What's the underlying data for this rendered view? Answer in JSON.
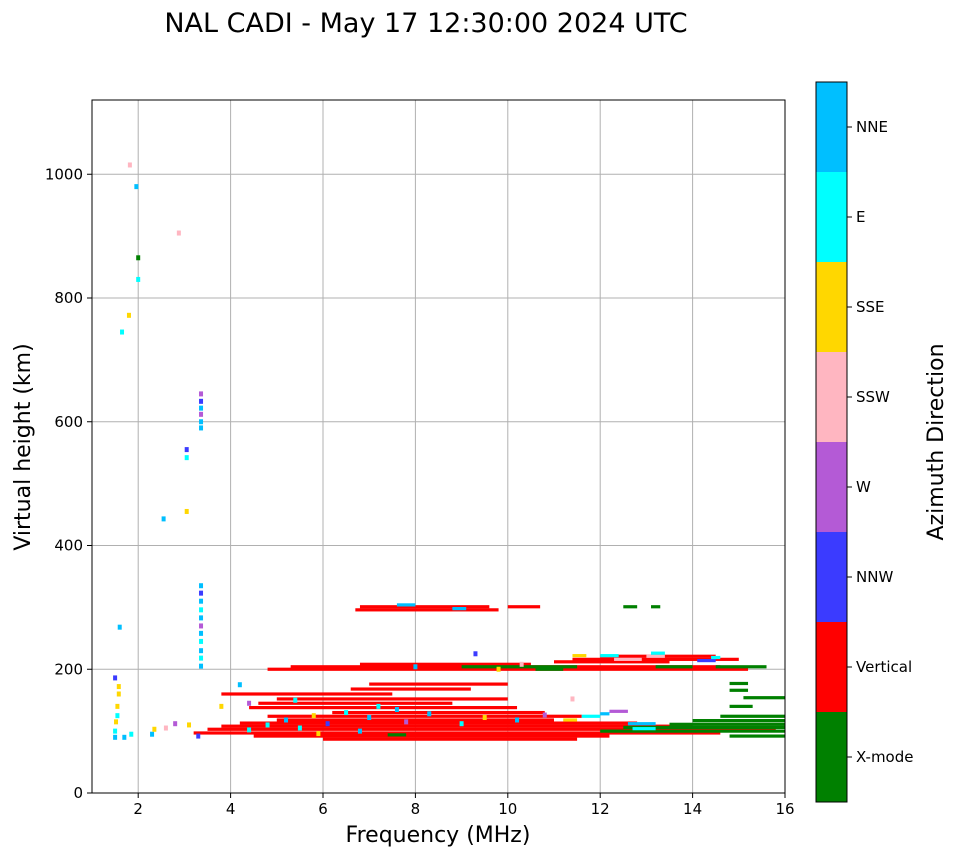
{
  "chart_data": {
    "type": "scatter",
    "title": "NAL CADI - May 17 12:30:00 2024 UTC",
    "xlabel": "Frequency (MHz)",
    "ylabel": "Virtual height (km)",
    "xlim": [
      1,
      16
    ],
    "ylim": [
      0,
      1120
    ],
    "xticks": [
      2,
      4,
      6,
      8,
      10,
      12,
      14,
      16
    ],
    "yticks": [
      0,
      200,
      400,
      600,
      800,
      1000
    ],
    "grid": true,
    "colorbar": {
      "label": "Azimuth Direction",
      "categories": [
        {
          "name": "X-mode",
          "color": "#008000"
        },
        {
          "name": "Vertical",
          "color": "#ff0000"
        },
        {
          "name": "NNW",
          "color": "#3b3bff"
        },
        {
          "name": "W",
          "color": "#b45ad6"
        },
        {
          "name": "SSW",
          "color": "#ffb6c1"
        },
        {
          "name": "SSE",
          "color": "#ffd700"
        },
        {
          "name": "E",
          "color": "#00ffff"
        },
        {
          "name": "NNE",
          "color": "#00bfff"
        }
      ]
    },
    "segments": [
      {
        "f1": 3.2,
        "f2": 14.6,
        "h": 97,
        "c": "Vertical"
      },
      {
        "f1": 3.5,
        "f2": 15.8,
        "h": 103,
        "c": "Vertical"
      },
      {
        "f1": 3.8,
        "f2": 14.0,
        "h": 108,
        "c": "Vertical"
      },
      {
        "f1": 4.5,
        "f2": 12.2,
        "h": 92,
        "c": "Vertical"
      },
      {
        "f1": 6.0,
        "f2": 11.5,
        "h": 87,
        "c": "Vertical"
      },
      {
        "f1": 4.2,
        "f2": 12.8,
        "h": 113,
        "c": "Vertical"
      },
      {
        "f1": 5.0,
        "f2": 11.0,
        "h": 118,
        "c": "Vertical"
      },
      {
        "f1": 4.8,
        "f2": 11.6,
        "h": 124,
        "c": "Vertical"
      },
      {
        "f1": 6.2,
        "f2": 10.8,
        "h": 130,
        "c": "Vertical"
      },
      {
        "f1": 4.4,
        "f2": 10.2,
        "h": 138,
        "c": "Vertical"
      },
      {
        "f1": 4.6,
        "f2": 8.8,
        "h": 145,
        "c": "Vertical"
      },
      {
        "f1": 5.0,
        "f2": 10.0,
        "h": 152,
        "c": "Vertical"
      },
      {
        "f1": 3.8,
        "f2": 7.5,
        "h": 160,
        "c": "Vertical"
      },
      {
        "f1": 6.6,
        "f2": 9.2,
        "h": 168,
        "c": "Vertical"
      },
      {
        "f1": 7.0,
        "f2": 10.0,
        "h": 176,
        "c": "Vertical"
      },
      {
        "f1": 4.8,
        "f2": 15.2,
        "h": 200,
        "c": "Vertical"
      },
      {
        "f1": 5.3,
        "f2": 14.6,
        "h": 204,
        "c": "Vertical"
      },
      {
        "f1": 6.8,
        "f2": 10.5,
        "h": 208,
        "c": "Vertical"
      },
      {
        "f1": 11.0,
        "f2": 13.5,
        "h": 212,
        "c": "Vertical"
      },
      {
        "f1": 11.4,
        "f2": 15.0,
        "h": 216,
        "c": "Vertical"
      },
      {
        "f1": 12.0,
        "f2": 14.5,
        "h": 221,
        "c": "Vertical"
      },
      {
        "f1": 6.7,
        "f2": 9.8,
        "h": 296,
        "c": "Vertical"
      },
      {
        "f1": 6.8,
        "f2": 9.6,
        "h": 301,
        "c": "Vertical"
      },
      {
        "f1": 10.0,
        "f2": 10.7,
        "h": 301,
        "c": "Vertical"
      },
      {
        "f1": 12.5,
        "f2": 12.8,
        "h": 301,
        "c": "X-mode"
      },
      {
        "f1": 13.1,
        "f2": 13.3,
        "h": 301,
        "c": "X-mode"
      },
      {
        "f1": 12.0,
        "f2": 16.0,
        "h": 100,
        "c": "X-mode"
      },
      {
        "f1": 12.5,
        "f2": 16.0,
        "h": 106,
        "c": "X-mode"
      },
      {
        "f1": 13.5,
        "f2": 16.0,
        "h": 111,
        "c": "X-mode"
      },
      {
        "f1": 14.8,
        "f2": 16.0,
        "h": 92,
        "c": "X-mode"
      },
      {
        "f1": 14.0,
        "f2": 16.0,
        "h": 117,
        "c": "X-mode"
      },
      {
        "f1": 14.6,
        "f2": 16.0,
        "h": 124,
        "c": "X-mode"
      },
      {
        "f1": 14.8,
        "f2": 15.3,
        "h": 140,
        "c": "X-mode"
      },
      {
        "f1": 15.1,
        "f2": 16.0,
        "h": 154,
        "c": "X-mode"
      },
      {
        "f1": 14.8,
        "f2": 15.2,
        "h": 166,
        "c": "X-mode"
      },
      {
        "f1": 14.8,
        "f2": 15.2,
        "h": 177,
        "c": "X-mode"
      },
      {
        "f1": 14.5,
        "f2": 15.6,
        "h": 204,
        "c": "X-mode"
      },
      {
        "f1": 13.2,
        "f2": 14.0,
        "h": 204,
        "c": "X-mode"
      },
      {
        "f1": 9.0,
        "f2": 11.5,
        "h": 204,
        "c": "X-mode"
      },
      {
        "f1": 7.4,
        "f2": 7.8,
        "h": 94,
        "c": "X-mode"
      },
      {
        "f1": 10.6,
        "f2": 11.2,
        "h": 200,
        "c": "X-mode"
      },
      {
        "f1": 7.6,
        "f2": 8.0,
        "h": 304,
        "c": "NNE"
      },
      {
        "f1": 8.8,
        "f2": 9.1,
        "h": 298,
        "c": "NNE"
      },
      {
        "f1": 12.6,
        "f2": 13.2,
        "h": 112,
        "c": "NNE"
      },
      {
        "f1": 12.7,
        "f2": 13.2,
        "h": 104,
        "c": "E"
      },
      {
        "f1": 11.6,
        "f2": 12.0,
        "h": 124,
        "c": "E"
      },
      {
        "f1": 12.3,
        "f2": 12.9,
        "h": 216,
        "c": "SSW"
      },
      {
        "f1": 13.0,
        "f2": 13.4,
        "h": 221,
        "c": "SSW"
      },
      {
        "f1": 12.0,
        "f2": 12.4,
        "h": 222,
        "c": "E"
      },
      {
        "f1": 14.1,
        "f2": 14.5,
        "h": 214,
        "c": "NNW"
      },
      {
        "f1": 12.2,
        "f2": 12.6,
        "h": 132,
        "c": "W"
      },
      {
        "f1": 13.1,
        "f2": 13.4,
        "h": 226,
        "c": "E"
      },
      {
        "f1": 11.4,
        "f2": 11.7,
        "h": 222,
        "c": "SSE"
      },
      {
        "f1": 14.4,
        "f2": 14.6,
        "h": 219,
        "c": "E"
      },
      {
        "f1": 12.0,
        "f2": 12.2,
        "h": 128,
        "c": "NNE"
      },
      {
        "f1": 11.2,
        "f2": 11.5,
        "h": 118,
        "c": "SSE"
      }
    ],
    "points": [
      {
        "f": 3.36,
        "h": 205,
        "c": "NNE"
      },
      {
        "f": 3.36,
        "h": 218,
        "c": "E"
      },
      {
        "f": 3.36,
        "h": 230,
        "c": "NNE"
      },
      {
        "f": 3.36,
        "h": 245,
        "c": "E"
      },
      {
        "f": 3.36,
        "h": 258,
        "c": "NNE"
      },
      {
        "f": 3.36,
        "h": 270,
        "c": "W"
      },
      {
        "f": 3.36,
        "h": 283,
        "c": "NNE"
      },
      {
        "f": 3.36,
        "h": 296,
        "c": "E"
      },
      {
        "f": 3.36,
        "h": 310,
        "c": "NNE"
      },
      {
        "f": 3.36,
        "h": 323,
        "c": "NNW"
      },
      {
        "f": 3.36,
        "h": 335,
        "c": "NNE"
      },
      {
        "f": 3.36,
        "h": 590,
        "c": "NNE"
      },
      {
        "f": 3.36,
        "h": 600,
        "c": "NNE"
      },
      {
        "f": 3.36,
        "h": 612,
        "c": "W"
      },
      {
        "f": 3.36,
        "h": 622,
        "c": "NNE"
      },
      {
        "f": 3.36,
        "h": 633,
        "c": "NNW"
      },
      {
        "f": 3.36,
        "h": 645,
        "c": "W"
      },
      {
        "f": 1.5,
        "h": 90,
        "c": "NNE"
      },
      {
        "f": 1.5,
        "h": 100,
        "c": "E"
      },
      {
        "f": 1.52,
        "h": 115,
        "c": "SSE"
      },
      {
        "f": 1.55,
        "h": 125,
        "c": "E"
      },
      {
        "f": 1.55,
        "h": 140,
        "c": "SSE"
      },
      {
        "f": 1.58,
        "h": 160,
        "c": "SSE"
      },
      {
        "f": 1.58,
        "h": 172,
        "c": "SSE"
      },
      {
        "f": 1.5,
        "h": 186,
        "c": "NNW"
      },
      {
        "f": 1.6,
        "h": 268,
        "c": "NNE"
      },
      {
        "f": 1.7,
        "h": 90,
        "c": "NNE"
      },
      {
        "f": 1.85,
        "h": 95,
        "c": "E"
      },
      {
        "f": 2.3,
        "h": 95,
        "c": "NNE"
      },
      {
        "f": 2.35,
        "h": 103,
        "c": "SSE"
      },
      {
        "f": 2.6,
        "h": 105,
        "c": "SSW"
      },
      {
        "f": 2.8,
        "h": 112,
        "c": "W"
      },
      {
        "f": 3.1,
        "h": 110,
        "c": "SSE"
      },
      {
        "f": 3.3,
        "h": 92,
        "c": "NNW"
      },
      {
        "f": 1.96,
        "h": 980,
        "c": "NNE"
      },
      {
        "f": 2.0,
        "h": 865,
        "c": "X-mode"
      },
      {
        "f": 2.0,
        "h": 830,
        "c": "E"
      },
      {
        "f": 1.8,
        "h": 772,
        "c": "SSE"
      },
      {
        "f": 1.65,
        "h": 745,
        "c": "E"
      },
      {
        "f": 2.88,
        "h": 905,
        "c": "SSW"
      },
      {
        "f": 1.82,
        "h": 1015,
        "c": "SSW"
      },
      {
        "f": 3.05,
        "h": 555,
        "c": "NNW"
      },
      {
        "f": 3.05,
        "h": 542,
        "c": "E"
      },
      {
        "f": 3.05,
        "h": 455,
        "c": "SSE"
      },
      {
        "f": 2.55,
        "h": 443,
        "c": "NNE"
      },
      {
        "f": 4.8,
        "h": 110,
        "c": "E"
      },
      {
        "f": 5.2,
        "h": 118,
        "c": "NNE"
      },
      {
        "f": 5.5,
        "h": 105,
        "c": "E"
      },
      {
        "f": 5.8,
        "h": 125,
        "c": "SSE"
      },
      {
        "f": 6.1,
        "h": 112,
        "c": "NNW"
      },
      {
        "f": 6.5,
        "h": 130,
        "c": "E"
      },
      {
        "f": 7.0,
        "h": 122,
        "c": "NNE"
      },
      {
        "f": 7.2,
        "h": 140,
        "c": "E"
      },
      {
        "f": 7.8,
        "h": 115,
        "c": "W"
      },
      {
        "f": 8.3,
        "h": 128,
        "c": "NNE"
      },
      {
        "f": 9.0,
        "h": 112,
        "c": "E"
      },
      {
        "f": 9.5,
        "h": 122,
        "c": "SSE"
      },
      {
        "f": 10.2,
        "h": 118,
        "c": "NNE"
      },
      {
        "f": 10.8,
        "h": 126,
        "c": "W"
      },
      {
        "f": 4.4,
        "h": 145,
        "c": "W"
      },
      {
        "f": 4.2,
        "h": 175,
        "c": "NNE"
      },
      {
        "f": 3.8,
        "h": 140,
        "c": "SSE"
      },
      {
        "f": 5.4,
        "h": 150,
        "c": "E"
      },
      {
        "f": 8.0,
        "h": 204,
        "c": "NNE"
      },
      {
        "f": 9.3,
        "h": 225,
        "c": "NNW"
      },
      {
        "f": 10.3,
        "h": 208,
        "c": "SSW"
      },
      {
        "f": 9.8,
        "h": 200,
        "c": "SSE"
      },
      {
        "f": 11.4,
        "h": 152,
        "c": "SSW"
      },
      {
        "f": 4.4,
        "h": 102,
        "c": "E"
      },
      {
        "f": 6.8,
        "h": 100,
        "c": "NNE"
      },
      {
        "f": 5.9,
        "h": 96,
        "c": "SSE"
      },
      {
        "f": 7.6,
        "h": 135,
        "c": "NNE"
      }
    ]
  }
}
